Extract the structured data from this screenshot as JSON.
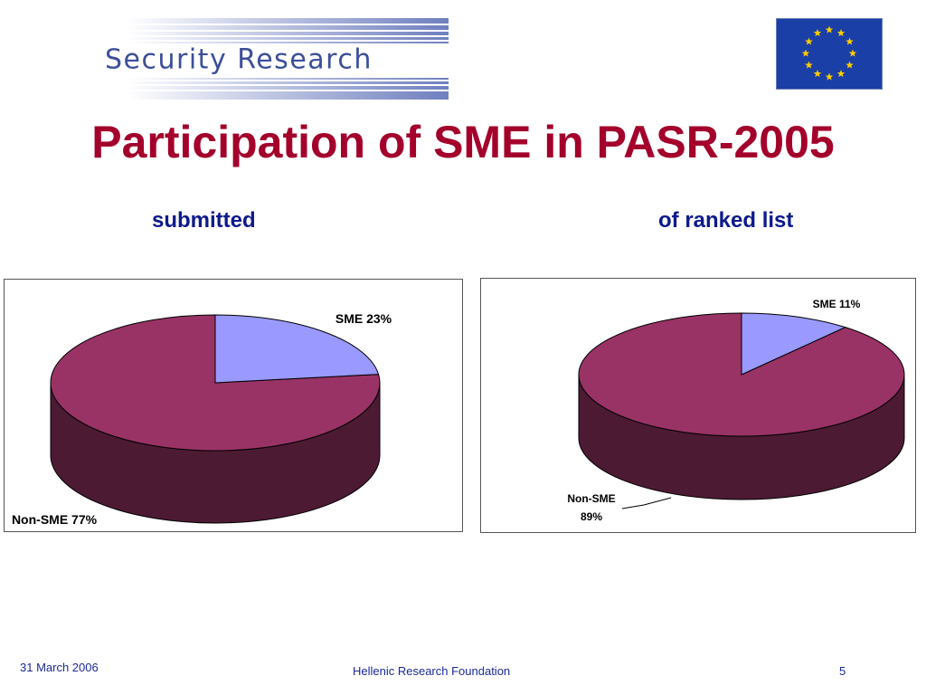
{
  "header": {
    "logo_text": "Security Research",
    "title": "Participation of SME in PASR-2005"
  },
  "colors": {
    "title": "#a3002b",
    "subtitle": "#0d1a8c",
    "sme": "#9999ff",
    "non_sme_top": "#993366",
    "non_sme_side": "#4d1a33",
    "flag_blue": "#1a3fa6",
    "flag_star": "#ffcc00"
  },
  "chart_data": [
    {
      "type": "pie",
      "subtitle": "submitted",
      "slices": [
        {
          "label": "SME 23%",
          "value": 23
        },
        {
          "label": "Non-SME 77%",
          "value": 77
        }
      ]
    },
    {
      "type": "pie",
      "subtitle": "of ranked list",
      "slices": [
        {
          "label": "SME 11%",
          "value": 11
        },
        {
          "label_line1": "Non-SME",
          "label_line2": "89%",
          "value": 89
        }
      ]
    }
  ],
  "footer": {
    "date": "31 March 2006",
    "organization": "Hellenic Research Foundation",
    "page_number": "5"
  }
}
